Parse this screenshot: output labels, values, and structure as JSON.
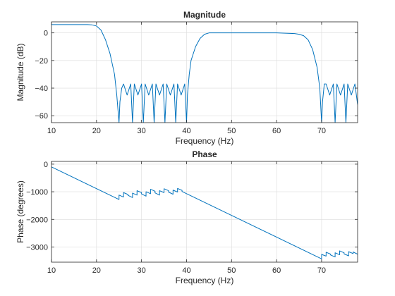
{
  "chart_data": [
    {
      "type": "line",
      "title": "Magnitude",
      "xlabel": "Frequency (Hz)",
      "ylabel": "Magnitude (dB)",
      "xlim": [
        10,
        78
      ],
      "ylim": [
        -65,
        8
      ],
      "xticks": [
        10,
        20,
        30,
        40,
        50,
        60,
        70
      ],
      "yticks": [
        -60,
        -40,
        -20,
        0
      ],
      "grid": true,
      "color": "#0072BD",
      "series": [
        {
          "x": [
            10,
            14,
            18,
            19,
            20,
            21,
            22,
            23,
            24,
            24.5,
            25,
            25.2,
            25.6,
            26,
            26.8,
            27.6,
            28,
            28.4,
            29.2,
            30,
            30.4,
            30.8,
            31.6,
            32.4,
            32.8,
            33.2,
            34,
            34.8,
            35.2,
            35.6,
            36.4,
            37.2,
            37.6,
            38,
            38.8,
            39.6,
            40,
            40.2,
            40.6,
            41,
            42,
            43,
            44,
            45,
            46,
            50,
            55,
            60,
            64,
            65,
            66,
            67,
            68,
            69,
            69.6,
            70,
            70.2,
            70.6,
            71,
            71.8,
            72.6,
            73,
            73.4,
            74.2,
            75,
            75.4,
            75.8,
            76.6,
            77.4,
            78
          ],
          "y": [
            6,
            6,
            6,
            5.8,
            5,
            2,
            -5,
            -15,
            -30,
            -45,
            -65,
            -50,
            -40,
            -37,
            -45,
            -37,
            -65,
            -37,
            -45,
            -37,
            -65,
            -37,
            -45,
            -37,
            -65,
            -37,
            -45,
            -37,
            -65,
            -37,
            -45,
            -37,
            -65,
            -37,
            -45,
            -37,
            -65,
            -45,
            -30,
            -20,
            -10,
            -4,
            -1,
            0,
            0,
            0,
            0,
            0,
            -0.5,
            -1,
            -2,
            -5,
            -12,
            -25,
            -40,
            -65,
            -50,
            -37,
            -37,
            -45,
            -37,
            -65,
            -37,
            -45,
            -37,
            -65,
            -37,
            -45,
            -37,
            -52
          ]
        }
      ]
    },
    {
      "type": "line",
      "title": "Phase",
      "xlabel": "Frequency (Hz)",
      "ylabel": "Phase (degrees)",
      "xlim": [
        10,
        78
      ],
      "ylim": [
        -3550,
        100
      ],
      "xticks": [
        10,
        20,
        30,
        40,
        50,
        60,
        70
      ],
      "yticks": [
        -3000,
        -2000,
        -1000,
        0
      ],
      "grid": true,
      "color": "#0072BD",
      "series": [
        {
          "x": [
            10,
            25,
            25.001,
            26,
            26.001,
            27,
            27.001,
            28,
            28.001,
            29,
            29.001,
            30,
            30.001,
            31,
            31.001,
            32,
            32.001,
            33,
            33.001,
            34,
            34.001,
            35,
            35.001,
            36,
            36.001,
            37,
            37.001,
            38,
            38.001,
            39,
            39.001,
            40,
            70,
            70.001,
            71,
            71.001,
            72,
            72.001,
            73,
            73.001,
            74,
            74.001,
            75,
            75.001,
            76,
            76.001,
            77,
            77.001,
            78
          ],
          "y": [
            -100,
            -1280,
            -1120,
            -1190,
            -1030,
            -1100,
            -1130,
            -1210,
            -1050,
            -1120,
            -960,
            -1030,
            -1080,
            -1160,
            -1000,
            -1070,
            -910,
            -980,
            -1040,
            -1120,
            -960,
            -1030,
            -890,
            -960,
            -1010,
            -1090,
            -940,
            -1010,
            -880,
            -950,
            -990,
            -1070,
            -3430,
            -3270,
            -3330,
            -3190,
            -3260,
            -3290,
            -3360,
            -3210,
            -3280,
            -3140,
            -3210,
            -3250,
            -3320,
            -3170,
            -3240,
            -3180,
            -3260
          ]
        }
      ]
    }
  ]
}
